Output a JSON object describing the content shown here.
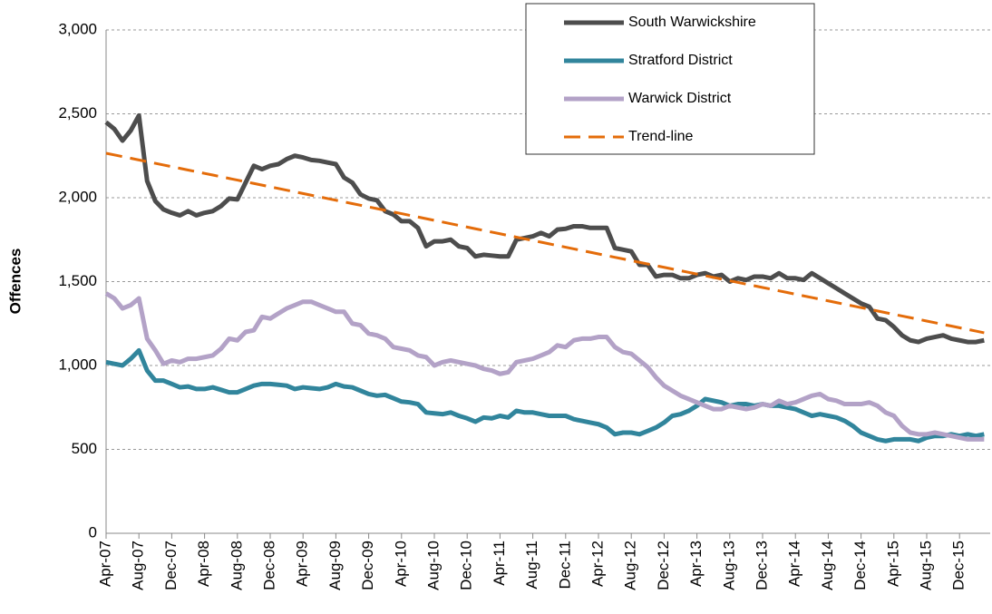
{
  "chart_data": {
    "type": "line",
    "y_label": "Offences",
    "categories": [
      "Apr-07",
      null,
      null,
      null,
      "Aug-07",
      null,
      null,
      null,
      "Dec-07",
      null,
      null,
      null,
      "Apr-08",
      null,
      null,
      null,
      "Aug-08",
      null,
      null,
      null,
      "Dec-08",
      null,
      null,
      null,
      "Apr-09",
      null,
      null,
      null,
      "Aug-09",
      null,
      null,
      null,
      "Dec-09",
      null,
      null,
      null,
      "Apr-10",
      null,
      null,
      null,
      "Aug-10",
      null,
      null,
      null,
      "Dec-10",
      null,
      null,
      null,
      "Apr-11",
      null,
      null,
      null,
      "Aug-11",
      null,
      null,
      null,
      "Dec-11",
      null,
      null,
      null,
      "Apr-12",
      null,
      null,
      null,
      "Aug-12",
      null,
      null,
      null,
      "Dec-12",
      null,
      null,
      null,
      "Apr-13",
      null,
      null,
      null,
      "Aug-13",
      null,
      null,
      null,
      "Dec-13",
      null,
      null,
      null,
      "Apr-14",
      null,
      null,
      null,
      "Aug-14",
      null,
      null,
      null,
      "Dec-14",
      null,
      null,
      null,
      "Apr-15",
      null,
      null,
      null,
      "Aug-15",
      null,
      null,
      null,
      "Dec-15",
      null,
      null,
      null
    ],
    "series": [
      {
        "name": "South Warwickshire",
        "color": "#4d4d4d",
        "values": [
          2450,
          2410,
          2340,
          2400,
          2490,
          2100,
          1980,
          1930,
          1910,
          1895,
          1920,
          1895,
          1910,
          1920,
          1950,
          1995,
          1990,
          2090,
          2190,
          2170,
          2190,
          2200,
          2230,
          2250,
          2240,
          2225,
          2220,
          2210,
          2200,
          2120,
          2090,
          2020,
          1995,
          1985,
          1920,
          1900,
          1860,
          1860,
          1820,
          1710,
          1740,
          1740,
          1750,
          1710,
          1700,
          1650,
          1660,
          1655,
          1650,
          1650,
          1750,
          1760,
          1770,
          1790,
          1770,
          1810,
          1815,
          1830,
          1830,
          1820,
          1820,
          1820,
          1700,
          1690,
          1680,
          1600,
          1600,
          1530,
          1540,
          1540,
          1520,
          1520,
          1540,
          1550,
          1530,
          1540,
          1500,
          1520,
          1510,
          1530,
          1530,
          1520,
          1550,
          1520,
          1520,
          1510,
          1550,
          1520,
          1490,
          1460,
          1430,
          1400,
          1370,
          1350,
          1280,
          1270,
          1230,
          1180,
          1150,
          1140,
          1160,
          1170,
          1180,
          1160,
          1150,
          1140,
          1140,
          1150
        ]
      },
      {
        "name": "Stratford District",
        "color": "#31859c",
        "values": [
          1020,
          1010,
          1000,
          1040,
          1090,
          970,
          910,
          910,
          890,
          870,
          875,
          860,
          860,
          870,
          855,
          840,
          840,
          860,
          880,
          890,
          890,
          885,
          880,
          860,
          870,
          865,
          860,
          870,
          890,
          875,
          870,
          850,
          830,
          820,
          825,
          805,
          785,
          780,
          770,
          720,
          715,
          710,
          720,
          700,
          685,
          665,
          690,
          685,
          700,
          690,
          730,
          720,
          720,
          710,
          700,
          700,
          700,
          680,
          670,
          660,
          650,
          630,
          590,
          600,
          600,
          590,
          610,
          630,
          660,
          700,
          710,
          730,
          760,
          800,
          790,
          780,
          760,
          770,
          770,
          760,
          770,
          760,
          760,
          750,
          740,
          720,
          700,
          710,
          700,
          690,
          670,
          640,
          600,
          580,
          560,
          550,
          560,
          560,
          560,
          550,
          570,
          580,
          580,
          590,
          580,
          590,
          580,
          590
        ]
      },
      {
        "name": "Warwick District",
        "color": "#b3a2c7",
        "values": [
          1430,
          1400,
          1340,
          1360,
          1400,
          1160,
          1090,
          1010,
          1030,
          1020,
          1040,
          1040,
          1050,
          1060,
          1100,
          1160,
          1150,
          1200,
          1210,
          1290,
          1280,
          1310,
          1340,
          1360,
          1380,
          1380,
          1360,
          1340,
          1320,
          1320,
          1250,
          1240,
          1190,
          1180,
          1160,
          1110,
          1100,
          1090,
          1060,
          1050,
          1000,
          1020,
          1030,
          1020,
          1010,
          1000,
          980,
          970,
          950,
          960,
          1020,
          1030,
          1040,
          1060,
          1080,
          1120,
          1110,
          1150,
          1160,
          1160,
          1170,
          1170,
          1110,
          1080,
          1070,
          1030,
          990,
          930,
          880,
          850,
          820,
          800,
          780,
          760,
          740,
          740,
          760,
          750,
          740,
          750,
          770,
          760,
          790,
          770,
          780,
          800,
          820,
          830,
          800,
          790,
          770,
          770,
          770,
          780,
          760,
          720,
          700,
          640,
          600,
          590,
          590,
          600,
          590,
          580,
          570,
          560,
          560,
          560
        ]
      },
      {
        "name": "Trend-line",
        "color": "#e46c0a",
        "dash": true,
        "values": [
          2265,
          2255,
          2245,
          2235,
          2225,
          2215,
          2205,
          2195,
          2185,
          2175,
          2165,
          2155,
          2145,
          2135,
          2125,
          2115,
          2105,
          2095,
          2085,
          2075,
          2065,
          2055,
          2045,
          2035,
          2025,
          2015,
          2005,
          1995,
          1985,
          1975,
          1965,
          1955,
          1945,
          1935,
          1925,
          1915,
          1905,
          1895,
          1885,
          1875,
          1865,
          1855,
          1845,
          1835,
          1825,
          1815,
          1805,
          1795,
          1785,
          1775,
          1765,
          1755,
          1745,
          1735,
          1725,
          1715,
          1705,
          1695,
          1685,
          1675,
          1665,
          1655,
          1645,
          1635,
          1625,
          1615,
          1605,
          1595,
          1585,
          1575,
          1565,
          1555,
          1545,
          1535,
          1525,
          1515,
          1505,
          1495,
          1485,
          1475,
          1465,
          1455,
          1445,
          1435,
          1425,
          1415,
          1405,
          1395,
          1385,
          1375,
          1365,
          1355,
          1345,
          1335,
          1325,
          1315,
          1305,
          1295,
          1285,
          1275,
          1265,
          1255,
          1245,
          1235,
          1225,
          1215,
          1205,
          1195
        ]
      }
    ],
    "ylim": [
      0,
      3000
    ],
    "yticks": [
      0,
      500,
      {
        "value": 1000,
        "label": "1,000"
      },
      {
        "value": 1500,
        "label": "1,500"
      },
      {
        "value": 2000,
        "label": "2,000"
      },
      {
        "value": 2500,
        "label": "2,500"
      },
      {
        "value": 3000,
        "label": "3,000"
      }
    ],
    "grid": true,
    "legend": "top-right"
  }
}
